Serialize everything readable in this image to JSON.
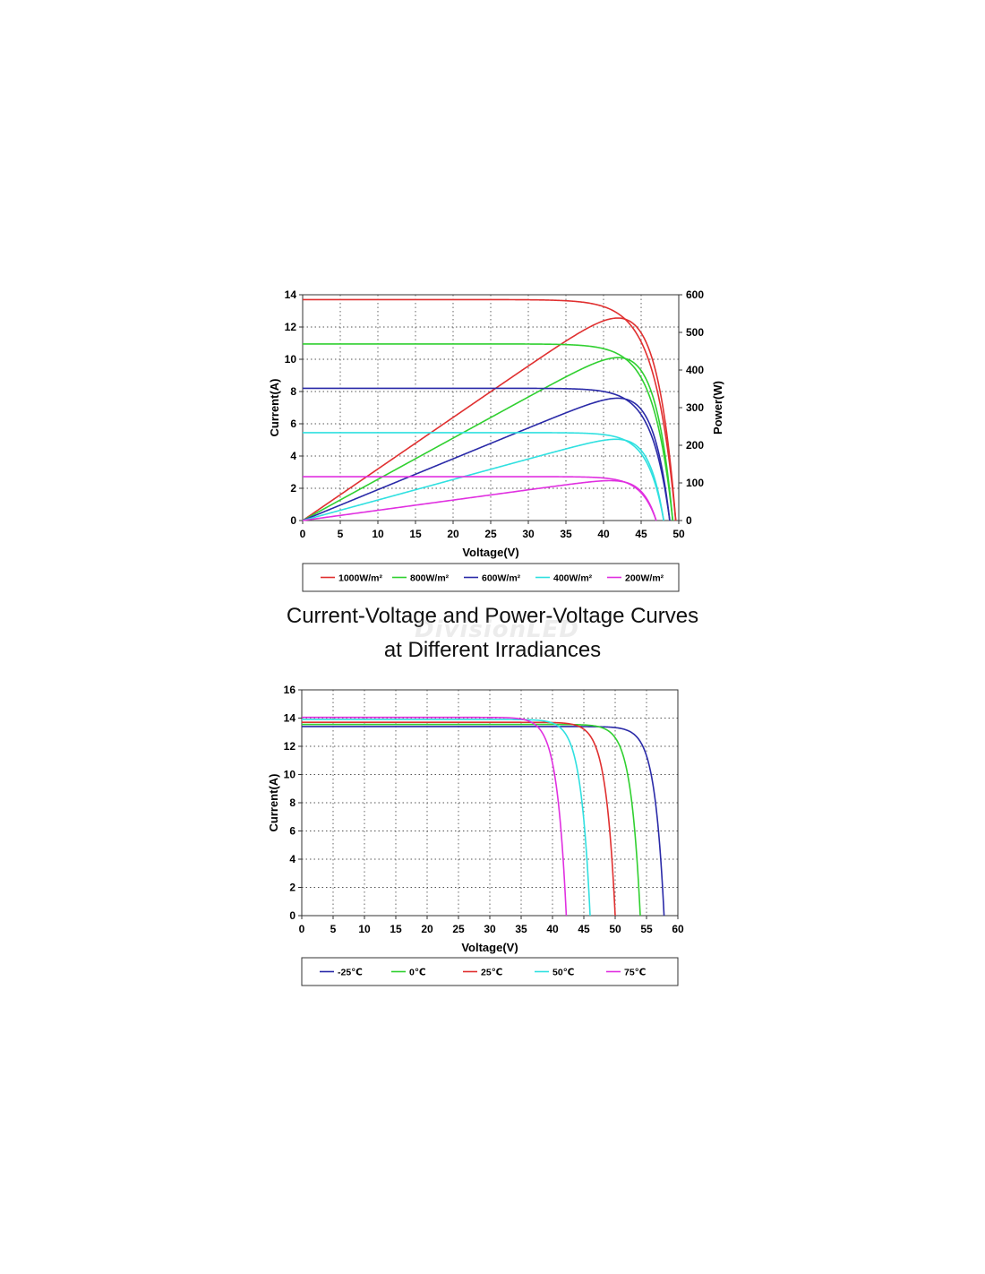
{
  "figure_title": {
    "line1": "Current-Voltage and Power-Voltage Curves",
    "line2": "at Different Irradiances"
  },
  "watermark_text": "DivisionLED",
  "chart_data": [
    {
      "type": "line",
      "xlabel": "Voltage(V)",
      "ylabel": "Current(A)",
      "y2label": "Power(W)",
      "xlim": [
        0,
        50
      ],
      "ylim": [
        0,
        14
      ],
      "y2lim": [
        0,
        600
      ],
      "xticks": [
        0,
        5,
        10,
        15,
        20,
        25,
        30,
        35,
        40,
        45,
        50
      ],
      "yticks": [
        0,
        2,
        4,
        6,
        8,
        10,
        12,
        14
      ],
      "y2ticks": [
        0,
        100,
        200,
        300,
        400,
        500,
        600
      ],
      "grid": true,
      "legend_position": "bottom",
      "series": [
        {
          "name": "1000W/m²",
          "color": "#e03030",
          "isc": 13.7,
          "voc": 49.6,
          "pmax": 538,
          "vmp": 41.5
        },
        {
          "name": "800W/m²",
          "color": "#30d030",
          "isc": 10.95,
          "voc": 49.2,
          "pmax": 433,
          "vmp": 41.5
        },
        {
          "name": "600W/m²",
          "color": "#2a2aa8",
          "isc": 8.2,
          "voc": 48.8,
          "pmax": 325,
          "vmp": 41.0
        },
        {
          "name": "400W/m²",
          "color": "#30e0e0",
          "isc": 5.45,
          "voc": 48.0,
          "pmax": 216,
          "vmp": 41.0
        },
        {
          "name": "200W/m²",
          "color": "#e030e0",
          "isc": 2.72,
          "voc": 47.0,
          "pmax": 106,
          "vmp": 40.5
        }
      ]
    },
    {
      "type": "line",
      "xlabel": "Voltage(V)",
      "ylabel": "Current(A)",
      "xlim": [
        0,
        60
      ],
      "ylim": [
        0,
        16
      ],
      "xticks": [
        0,
        5,
        10,
        15,
        20,
        25,
        30,
        35,
        40,
        45,
        50,
        55,
        60
      ],
      "yticks": [
        0,
        2,
        4,
        6,
        8,
        10,
        12,
        14,
        16
      ],
      "grid": true,
      "legend_position": "bottom",
      "series": [
        {
          "name": "-25℃",
          "color": "#2a2aa8",
          "isc": 13.4,
          "voc": 57.8
        },
        {
          "name": "0℃",
          "color": "#30d030",
          "isc": 13.55,
          "voc": 54.0
        },
        {
          "name": "25℃",
          "color": "#e03030",
          "isc": 13.7,
          "voc": 50.0
        },
        {
          "name": "50℃",
          "color": "#30e0e0",
          "isc": 13.9,
          "voc": 46.0
        },
        {
          "name": "75℃",
          "color": "#e030e0",
          "isc": 14.05,
          "voc": 42.2
        }
      ]
    }
  ]
}
